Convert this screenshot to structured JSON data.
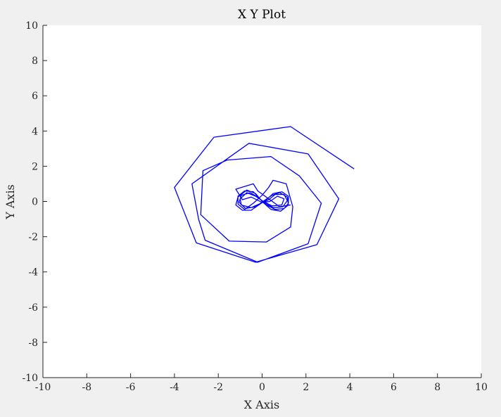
{
  "chart_data": {
    "type": "line",
    "title": "X Y Plot",
    "xlabel": "X Axis",
    "ylabel": "Y Axis",
    "xlim": [
      -10,
      10
    ],
    "ylim": [
      -10,
      10
    ],
    "xticks": [
      -10,
      -8,
      -6,
      -4,
      -2,
      0,
      2,
      4,
      6,
      8,
      10
    ],
    "yticks": [
      -10,
      -8,
      -6,
      -4,
      -2,
      0,
      2,
      4,
      6,
      8,
      10
    ],
    "grid": false,
    "series": [
      {
        "color": "#0000ff",
        "points": [
          [
            4.2,
            1.85
          ],
          [
            1.3,
            4.25
          ],
          [
            -2.2,
            3.65
          ],
          [
            -4.0,
            0.8
          ],
          [
            -3.0,
            -2.35
          ],
          [
            -0.3,
            -3.45
          ],
          [
            2.5,
            -2.45
          ],
          [
            3.5,
            0.15
          ],
          [
            2.1,
            2.7
          ],
          [
            -0.6,
            3.3
          ],
          [
            -3.2,
            1.0
          ],
          [
            -2.9,
            -1.0
          ],
          [
            -2.6,
            -2.2
          ],
          [
            -0.2,
            -3.45
          ],
          [
            2.1,
            -2.4
          ],
          [
            2.7,
            -0.1
          ],
          [
            1.7,
            1.45
          ],
          [
            0.4,
            2.55
          ],
          [
            -1.6,
            2.35
          ],
          [
            -2.7,
            1.75
          ],
          [
            -2.8,
            -0.75
          ],
          [
            -1.5,
            -2.25
          ],
          [
            0.2,
            -2.3
          ],
          [
            1.3,
            -1.45
          ],
          [
            1.4,
            -0.3
          ],
          [
            1.1,
            1.0
          ],
          [
            0.5,
            1.2
          ],
          [
            0.3,
            0.8
          ],
          [
            0.0,
            0.35
          ],
          [
            -0.4,
            -0.1
          ],
          [
            -0.8,
            -0.45
          ],
          [
            -1.1,
            -0.15
          ],
          [
            -1.1,
            0.3
          ],
          [
            -0.8,
            0.6
          ],
          [
            -0.4,
            0.55
          ],
          [
            -0.1,
            0.15
          ],
          [
            0.2,
            -0.2
          ],
          [
            0.6,
            -0.45
          ],
          [
            1.0,
            -0.4
          ],
          [
            1.2,
            -0.1
          ],
          [
            1.2,
            0.3
          ],
          [
            0.9,
            0.55
          ],
          [
            0.5,
            0.45
          ],
          [
            0.2,
            0.1
          ],
          [
            -0.1,
            -0.15
          ],
          [
            -0.5,
            -0.5
          ],
          [
            -0.9,
            -0.5
          ],
          [
            -1.2,
            -0.2
          ],
          [
            -1.1,
            0.25
          ],
          [
            -0.7,
            0.65
          ],
          [
            -0.3,
            0.45
          ],
          [
            0.0,
            0.0
          ],
          [
            0.4,
            -0.45
          ],
          [
            0.85,
            -0.55
          ],
          [
            1.2,
            -0.2
          ],
          [
            1.15,
            0.25
          ],
          [
            0.8,
            0.5
          ],
          [
            0.45,
            0.35
          ],
          [
            0.1,
            0.05
          ],
          [
            -0.3,
            -0.3
          ],
          [
            -0.75,
            -0.4
          ],
          [
            -1.05,
            -0.05
          ],
          [
            -0.95,
            0.35
          ],
          [
            -0.55,
            0.5
          ],
          [
            -0.2,
            0.25
          ],
          [
            0.1,
            -0.05
          ],
          [
            0.5,
            -0.35
          ],
          [
            0.95,
            -0.3
          ],
          [
            1.15,
            0.05
          ],
          [
            1.0,
            0.4
          ],
          [
            0.6,
            0.4
          ],
          [
            0.3,
            0.1
          ],
          [
            -0.05,
            -0.1
          ],
          [
            -0.5,
            -0.35
          ],
          [
            -0.95,
            -0.2
          ],
          [
            -1.0,
            0.15
          ],
          [
            -0.7,
            0.5
          ],
          [
            -0.3,
            0.3
          ],
          [
            0.05,
            0.0
          ],
          [
            0.45,
            -0.25
          ],
          [
            0.9,
            -0.2
          ],
          [
            1.0,
            0.15
          ],
          [
            0.7,
            0.3
          ],
          [
            0.35,
            0.0
          ],
          [
            0.0,
            -0.05
          ],
          [
            -0.5,
            0.25
          ],
          [
            -0.9,
            0.1
          ],
          [
            -1.2,
            0.7
          ],
          [
            -0.4,
            1.0
          ],
          [
            -0.2,
            0.6
          ],
          [
            0.3,
            0.15
          ],
          [
            0.8,
            -0.3
          ],
          [
            1.3,
            -0.2
          ]
        ]
      }
    ]
  }
}
